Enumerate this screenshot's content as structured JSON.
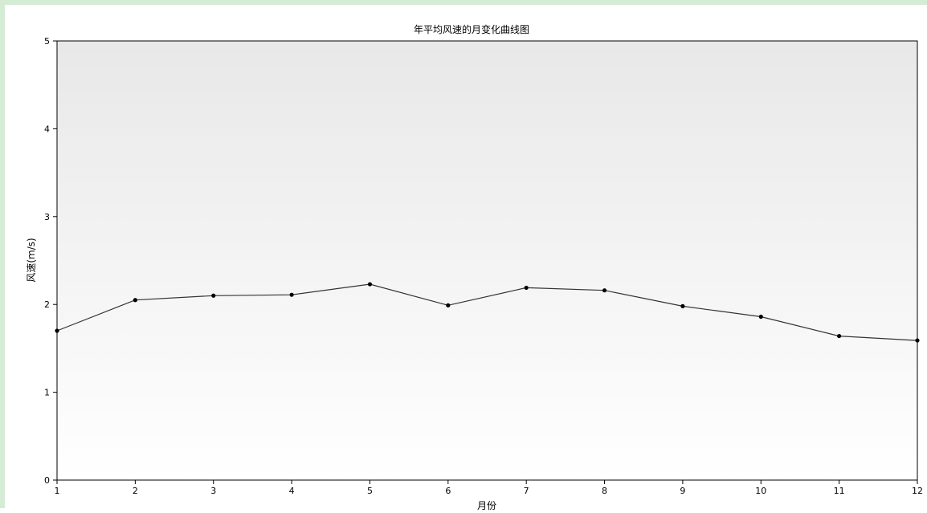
{
  "colors": {
    "frame_border": "#d4ecd4",
    "plot_bg_top": "#e8e8e8",
    "plot_bg_bottom": "#ffffff",
    "series_line": "#333333",
    "marker": "#000000",
    "axis": "#000000"
  },
  "chart_data": {
    "type": "line",
    "title": "年平均风速的月变化曲线图",
    "xlabel": "月份",
    "ylabel": "风速(m/s)",
    "xlim": [
      1,
      12
    ],
    "ylim": [
      0,
      5
    ],
    "x_ticks": [
      "1",
      "2",
      "3",
      "4",
      "5",
      "6",
      "7",
      "8",
      "9",
      "10",
      "11",
      "12"
    ],
    "y_ticks": [
      "0",
      "1",
      "2",
      "3",
      "4",
      "5"
    ],
    "grid": false,
    "legend": "none",
    "markers": "circle",
    "x": [
      1,
      2,
      3,
      4,
      5,
      6,
      7,
      8,
      9,
      10,
      11,
      12
    ],
    "series": [
      {
        "values": [
          1.7,
          2.05,
          2.1,
          2.11,
          2.23,
          1.99,
          2.19,
          2.16,
          1.98,
          1.86,
          1.64,
          1.59
        ]
      }
    ]
  }
}
